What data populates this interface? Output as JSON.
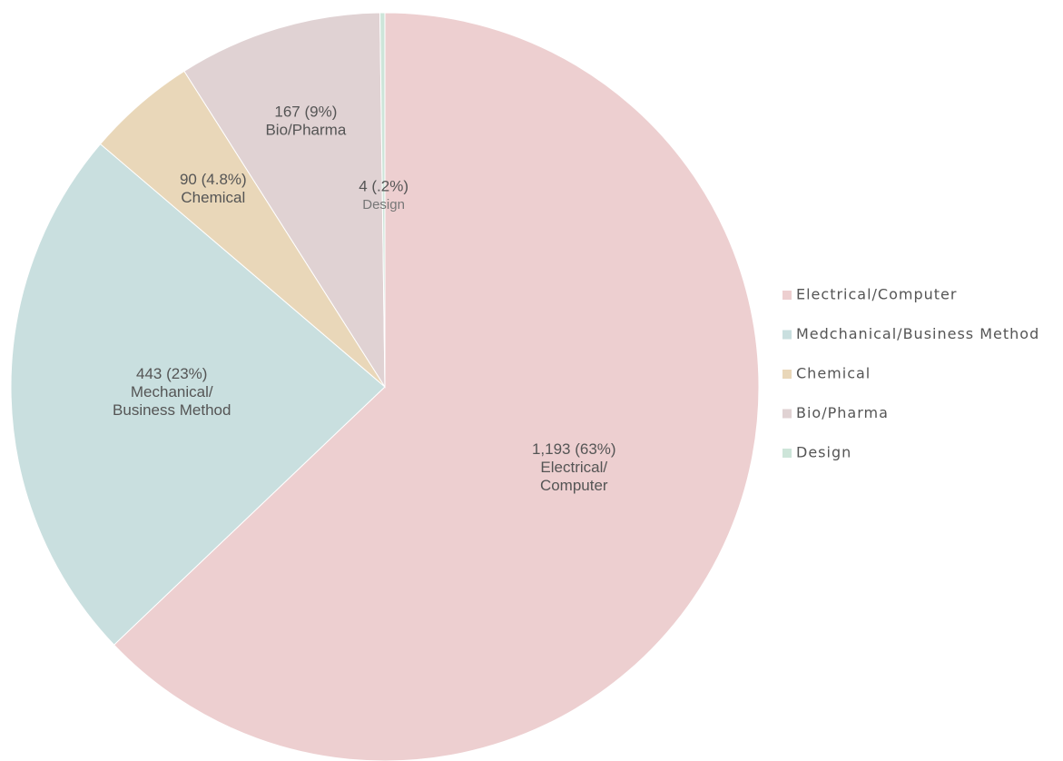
{
  "chart_data": {
    "type": "pie",
    "series": [
      {
        "categories": [
          "Electrical/Computer",
          "Medchanical/Business Method",
          "Chemical",
          "Bio/Pharma",
          "Design"
        ],
        "values": [
          1193,
          443,
          90,
          167,
          4
        ],
        "value_labels": [
          "1,193 (63%)",
          "443 (23%)",
          "90 (4.8%)",
          "167 (9%)",
          "4 (.2%)"
        ],
        "slice_labels": [
          [
            "Electrical/",
            "Computer"
          ],
          [
            "Mechanical/",
            "Business Method"
          ],
          [
            "Chemical"
          ],
          [
            "Bio/Pharma"
          ],
          [
            "Design"
          ]
        ],
        "colors": [
          "#edcfd0",
          "#c9dfdf",
          "#e9d7b9",
          "#e0d2d3",
          "#cde5d9"
        ]
      }
    ],
    "legend": "right"
  }
}
